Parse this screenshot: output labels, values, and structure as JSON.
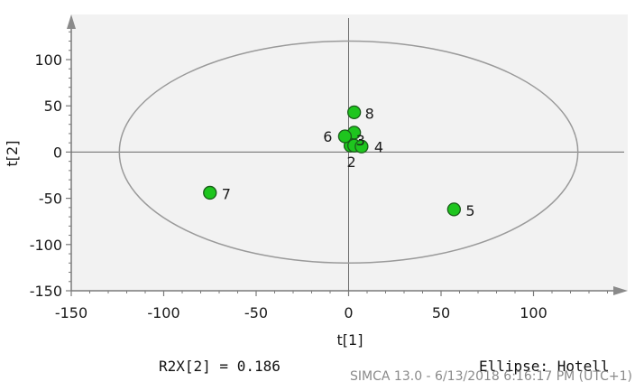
{
  "chart_data": {
    "type": "scatter",
    "xlabel": "t[1]",
    "ylabel": "t[2]",
    "xlim": [
      -150,
      150
    ],
    "ylim": [
      -150,
      150
    ],
    "x_ticks": [
      -150,
      -100,
      -50,
      0,
      50,
      100
    ],
    "y_ticks": [
      -150,
      -100,
      -50,
      0,
      50,
      100
    ],
    "grid": false,
    "legend": "none",
    "ellipse": {
      "cx": 0,
      "cy": 0,
      "rx": 124,
      "ry": 120
    },
    "points": [
      {
        "label": "1",
        "x": 3,
        "y": 21
      },
      {
        "label": "2",
        "x": 1,
        "y": 7
      },
      {
        "label": "3",
        "x": 3,
        "y": 7
      },
      {
        "label": "4",
        "x": 7,
        "y": 6
      },
      {
        "label": "5",
        "x": 57,
        "y": -62
      },
      {
        "label": "6",
        "x": -2,
        "y": 17
      },
      {
        "label": "7",
        "x": -75,
        "y": -44
      },
      {
        "label": "8",
        "x": 3,
        "y": 43
      }
    ],
    "colors": {
      "point_fill": "#1ec51e",
      "point_stroke": "#1a5c1a",
      "ellipse": "#9a9a9a",
      "axis": "#7a7a7a",
      "plot_bg": "#f2f2f2"
    }
  },
  "footer": {
    "r2x": "R2X[2] = 0.186",
    "ellipse": "Ellipse: Hotell",
    "stamp": "SIMCA 13.0 - 6/13/2018 6:16:17 PM (UTC+1)"
  }
}
